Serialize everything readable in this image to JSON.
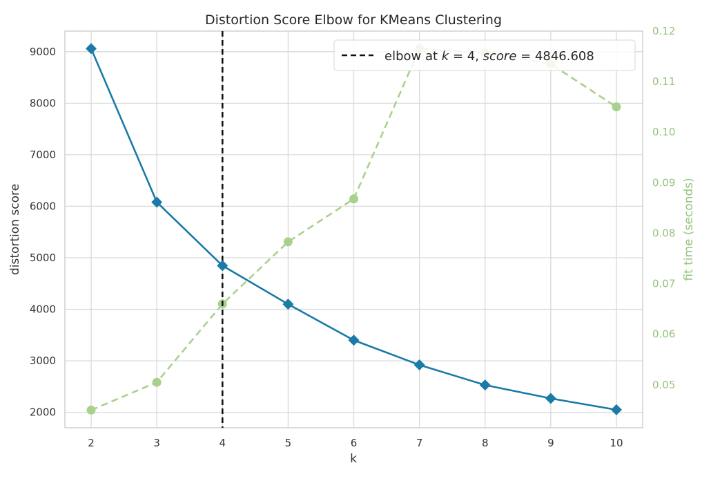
{
  "chart_data": {
    "type": "line",
    "title": "Distortion Score Elbow for KMeans Clustering",
    "xlabel": "k",
    "ylabel": "distortion score",
    "y2label": "fit time (seconds)",
    "x": [
      2,
      3,
      4,
      5,
      6,
      7,
      8,
      9,
      10
    ],
    "xlim": [
      1.6,
      10.4
    ],
    "ylim": [
      1700,
      9400
    ],
    "y2lim": [
      0.0415,
      0.12
    ],
    "xticks": [
      "2",
      "3",
      "4",
      "5",
      "6",
      "7",
      "8",
      "9",
      "10"
    ],
    "yticks": [
      2000,
      3000,
      4000,
      5000,
      6000,
      7000,
      8000,
      9000
    ],
    "yticks_labels": [
      "2000",
      "3000",
      "4000",
      "5000",
      "6000",
      "7000",
      "8000",
      "9000"
    ],
    "y2ticks": [
      0.05,
      0.06,
      0.07,
      0.08,
      0.09,
      0.1,
      0.11,
      0.12
    ],
    "y2ticks_labels": [
      "0.05",
      "0.06",
      "0.07",
      "0.08",
      "0.09",
      "0.10",
      "0.11",
      "0.12"
    ],
    "grid": true,
    "legend_position": "top-right",
    "series": [
      {
        "axis": "left",
        "color": "#1a7aa8",
        "marker": "diamond",
        "line": "solid",
        "values": [
          9060,
          6080,
          4847,
          4100,
          3400,
          2920,
          2530,
          2270,
          2050
        ]
      },
      {
        "axis": "right",
        "color": "#a9d18e",
        "marker": "circle",
        "line": "dashed",
        "values": [
          0.045,
          0.0505,
          0.066,
          0.0783,
          0.0868,
          0.1165,
          0.1157,
          0.1135,
          0.105
        ]
      }
    ],
    "elbow": {
      "k": 4,
      "color": "#111111",
      "legend_label": {
        "prefix": "elbow at ",
        "k_var": "k",
        "eq1": " = 4, ",
        "score_var": "score",
        "eq2": " = 4846.608"
      }
    }
  }
}
